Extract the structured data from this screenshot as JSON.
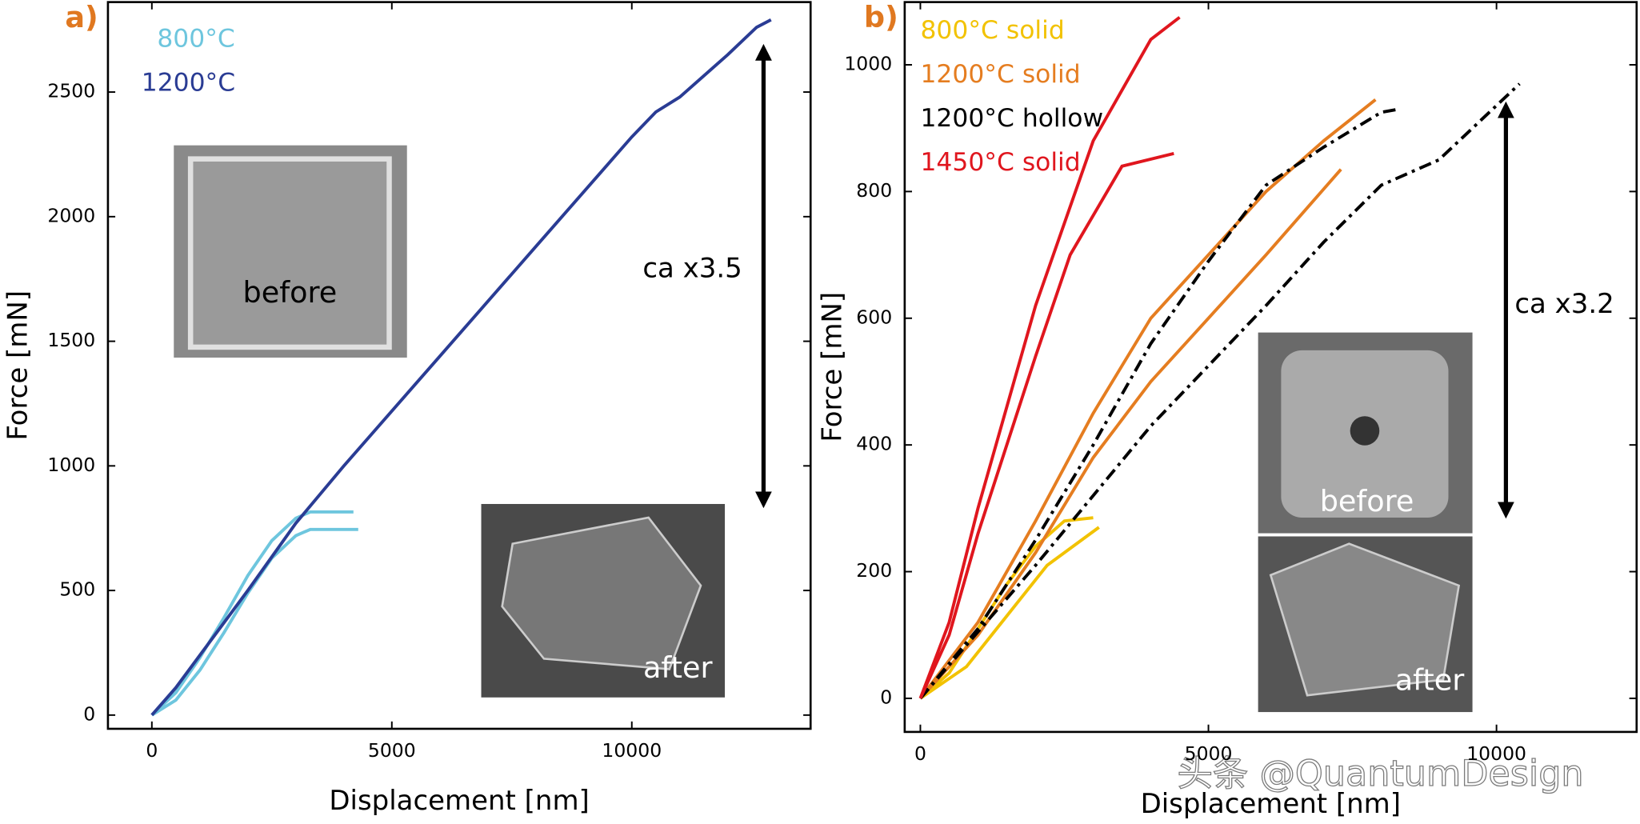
{
  "chart_data": [
    {
      "type": "line",
      "panel_label": "a)",
      "x_label": "Displacement [nm]",
      "y_label": "Force [mN]",
      "xlim": [
        -915,
        13725
      ],
      "ylim": [
        -55,
        2861
      ],
      "xticks": [
        0,
        5000,
        10000
      ],
      "yticks": [
        0,
        500,
        1000,
        1500,
        2000,
        2500
      ],
      "series": [
        {
          "name": "800°C",
          "color": "#6ec6de",
          "dash": "solid",
          "x": [
            0,
            500,
            1000,
            1500,
            2000,
            2500,
            3000,
            3300,
            4200,
            null,
            0,
            500,
            1000,
            1500,
            2000,
            2500,
            3000,
            3300,
            4300
          ],
          "values": [
            0,
            90,
            230,
            390,
            560,
            700,
            790,
            815,
            815,
            null,
            0,
            60,
            180,
            330,
            490,
            630,
            720,
            745,
            745
          ]
        },
        {
          "name": "1200°C",
          "color": "#2a3c94",
          "dash": "solid",
          "x": [
            0,
            500,
            1000,
            2000,
            3000,
            4000,
            6000,
            8000,
            10000,
            10500,
            11000,
            12000,
            12600,
            12900
          ],
          "values": [
            0,
            110,
            240,
            500,
            770,
            1000,
            1440,
            1880,
            2320,
            2420,
            2480,
            2650,
            2760,
            2790
          ]
        }
      ],
      "annotations": [
        "ca x3.5",
        "before",
        "after"
      ]
    },
    {
      "type": "line",
      "panel_label": "b)",
      "x_label": "Displacement [nm]",
      "y_label": "Force [mN]",
      "xlim": [
        -272,
        12432
      ],
      "ylim": [
        -53,
        1099
      ],
      "xticks": [
        0,
        5000,
        10000
      ],
      "yticks": [
        0,
        200,
        400,
        600,
        800,
        1000
      ],
      "series": [
        {
          "name": "800°C solid",
          "color": "#f2c200",
          "dash": "solid",
          "x": [
            0,
            500,
            1000,
            1500,
            2000,
            2500,
            3000,
            null,
            0,
            800,
            1500,
            2200,
            3100
          ],
          "values": [
            0,
            40,
            110,
            180,
            240,
            280,
            285,
            null,
            0,
            50,
            130,
            210,
            270
          ]
        },
        {
          "name": "1200°C solid",
          "color": "#e57d20",
          "dash": "solid",
          "x": [
            0,
            1000,
            2000,
            3000,
            4000,
            5000,
            6000,
            7000,
            7900,
            null,
            0,
            1000,
            2000,
            3000,
            4000,
            5000,
            6000,
            7300
          ],
          "values": [
            0,
            120,
            280,
            450,
            600,
            700,
            800,
            880,
            945,
            null,
            0,
            100,
            230,
            380,
            500,
            600,
            700,
            835
          ]
        },
        {
          "name": "1200°C hollow",
          "color": "#000000",
          "dash": "dashdot",
          "x": [
            0,
            1000,
            2000,
            3000,
            4000,
            5000,
            6000,
            7000,
            8000,
            8300,
            null,
            0,
            2000,
            4000,
            6000,
            7000,
            8000,
            9000,
            10400
          ],
          "values": [
            0,
            110,
            250,
            400,
            560,
            690,
            810,
            870,
            925,
            930,
            null,
            0,
            210,
            430,
            620,
            720,
            810,
            850,
            970
          ]
        },
        {
          "name": "1450°C solid",
          "color": "#e0161e",
          "dash": "solid",
          "x": [
            0,
            500,
            1000,
            2000,
            3000,
            4000,
            4500,
            null,
            0,
            500,
            1000,
            2000,
            2600,
            3500,
            4400
          ],
          "values": [
            0,
            120,
            300,
            620,
            880,
            1040,
            1075,
            null,
            0,
            100,
            260,
            540,
            700,
            840,
            860
          ]
        }
      ],
      "annotations": [
        "ca x3.2",
        "before",
        "after"
      ]
    }
  ],
  "watermark": "头条 @QuantumDesign"
}
